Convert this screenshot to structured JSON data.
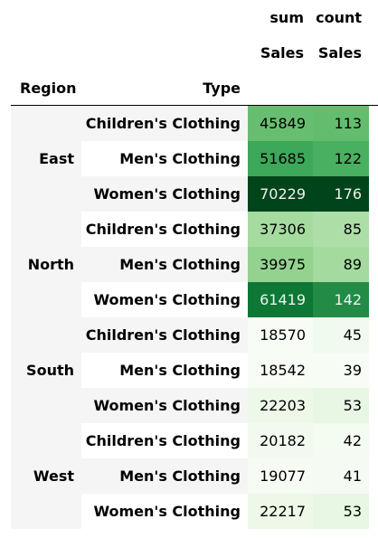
{
  "header": {
    "measure_sum": "sum",
    "measure_count": "count",
    "col_sales_1": "Sales",
    "col_sales_2": "Sales",
    "index_region": "Region",
    "index_type": "Type"
  },
  "groups": [
    {
      "region": "East",
      "rows": [
        {
          "type": "Children's Clothing",
          "sum": 45849,
          "count": 113
        },
        {
          "type": "Men's Clothing",
          "sum": 51685,
          "count": 122
        },
        {
          "type": "Women's Clothing",
          "sum": 70229,
          "count": 176
        }
      ]
    },
    {
      "region": "North",
      "rows": [
        {
          "type": "Children's Clothing",
          "sum": 37306,
          "count": 85
        },
        {
          "type": "Men's Clothing",
          "sum": 39975,
          "count": 89
        },
        {
          "type": "Women's Clothing",
          "sum": 61419,
          "count": 142
        }
      ]
    },
    {
      "region": "South",
      "rows": [
        {
          "type": "Children's Clothing",
          "sum": 18570,
          "count": 45
        },
        {
          "type": "Men's Clothing",
          "sum": 18542,
          "count": 39
        },
        {
          "type": "Women's Clothing",
          "sum": 22203,
          "count": 53
        }
      ]
    },
    {
      "region": "West",
      "rows": [
        {
          "type": "Children's Clothing",
          "sum": 20182,
          "count": 42
        },
        {
          "type": "Men's Clothing",
          "sum": 19077,
          "count": 41
        },
        {
          "type": "Women's Clothing",
          "sum": 22217,
          "count": 53
        }
      ]
    }
  ],
  "style": {
    "stripe_color": "#f5f5f5",
    "heat_low": "#f7fcf5",
    "heat_high": "#00441b",
    "text_dark": "#000000",
    "text_light": "#f1f1f1"
  }
}
